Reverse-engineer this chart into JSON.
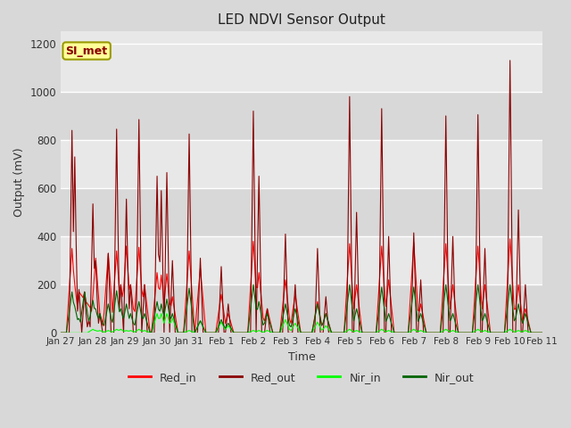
{
  "title": "LED NDVI Sensor Output",
  "xlabel": "Time",
  "ylabel": "Output (mV)",
  "ylim": [
    0,
    1250
  ],
  "xlim": [
    0,
    345
  ],
  "fig_bg_color": "#d8d8d8",
  "plot_bg_color": "#e8e8e8",
  "legend_labels": [
    "Red_in",
    "Red_out",
    "Nir_in",
    "Nir_out"
  ],
  "legend_colors": [
    "#ff0000",
    "#8b0000",
    "#00ff00",
    "#006400"
  ],
  "annotation_text": "SI_met",
  "annotation_color": "#8b0000",
  "annotation_bg": "#ffff99",
  "annotation_border": "#999900",
  "tick_labels": [
    "Jan 27",
    "Jan 28",
    "Jan 29",
    "Jan 30",
    "Jan 31",
    "Feb 1",
    "Feb 2",
    "Feb 3",
    "Feb 4",
    "Feb 5",
    "Feb 6",
    "Feb 7",
    "Feb 8",
    "Feb 9",
    "Feb 10",
    "Feb 11"
  ],
  "tick_positions": [
    0,
    23,
    46,
    69,
    92,
    115,
    138,
    161,
    184,
    207,
    230,
    253,
    276,
    299,
    322,
    345
  ],
  "grid_color": "#c8c8c8",
  "yticks": [
    0,
    200,
    400,
    600,
    800,
    1000,
    1200
  ],
  "spikes": [
    {
      "t": 8,
      "ri": 350,
      "ro": 840,
      "ni": 0,
      "no": 170
    },
    {
      "t": 10,
      "ri": 200,
      "ro": 730,
      "ni": 0,
      "no": 110
    },
    {
      "t": 13,
      "ri": 80,
      "ro": 180,
      "ni": 0,
      "no": 60
    },
    {
      "t": 17,
      "ri": 170,
      "ro": 170,
      "ni": 0,
      "no": 170
    },
    {
      "t": 20,
      "ri": 50,
      "ro": 50,
      "ni": 0,
      "no": 50
    },
    {
      "t": 23,
      "ri": 120,
      "ro": 535,
      "ni": 15,
      "no": 135
    },
    {
      "t": 25,
      "ri": 310,
      "ro": 300,
      "ni": 10,
      "no": 100
    },
    {
      "t": 28,
      "ri": 60,
      "ro": 80,
      "ni": 10,
      "no": 80
    },
    {
      "t": 34,
      "ri": 330,
      "ro": 330,
      "ni": 10,
      "no": 120
    },
    {
      "t": 40,
      "ri": 340,
      "ro": 845,
      "ni": 15,
      "no": 175
    },
    {
      "t": 43,
      "ri": 200,
      "ro": 200,
      "ni": 15,
      "no": 100
    },
    {
      "t": 47,
      "ri": 360,
      "ro": 555,
      "ni": 10,
      "no": 120
    },
    {
      "t": 50,
      "ri": 200,
      "ro": 200,
      "ni": 10,
      "no": 80
    },
    {
      "t": 56,
      "ri": 355,
      "ro": 885,
      "ni": 15,
      "no": 130
    },
    {
      "t": 60,
      "ri": 200,
      "ro": 200,
      "ni": 10,
      "no": 80
    },
    {
      "t": 69,
      "ri": 250,
      "ro": 650,
      "ni": 80,
      "no": 130
    },
    {
      "t": 72,
      "ri": 240,
      "ro": 590,
      "ni": 80,
      "no": 120
    },
    {
      "t": 76,
      "ri": 245,
      "ro": 665,
      "ni": 80,
      "no": 140
    },
    {
      "t": 80,
      "ri": 150,
      "ro": 300,
      "ni": 60,
      "no": 80
    },
    {
      "t": 92,
      "ri": 340,
      "ro": 825,
      "ni": 10,
      "no": 185
    },
    {
      "t": 100,
      "ri": 270,
      "ro": 310,
      "ni": 50,
      "no": 50
    },
    {
      "t": 115,
      "ri": 160,
      "ro": 275,
      "ni": 45,
      "no": 55
    },
    {
      "t": 120,
      "ri": 80,
      "ro": 120,
      "ni": 30,
      "no": 40
    },
    {
      "t": 138,
      "ri": 380,
      "ro": 920,
      "ni": 10,
      "no": 200
    },
    {
      "t": 142,
      "ri": 250,
      "ro": 650,
      "ni": 10,
      "no": 130
    },
    {
      "t": 148,
      "ri": 100,
      "ro": 100,
      "ni": 10,
      "no": 80
    },
    {
      "t": 161,
      "ri": 220,
      "ro": 410,
      "ni": 55,
      "no": 120
    },
    {
      "t": 168,
      "ri": 160,
      "ro": 200,
      "ni": 40,
      "no": 100
    },
    {
      "t": 184,
      "ri": 130,
      "ro": 350,
      "ni": 45,
      "no": 120
    },
    {
      "t": 190,
      "ri": 80,
      "ro": 150,
      "ni": 30,
      "no": 80
    },
    {
      "t": 207,
      "ri": 370,
      "ro": 980,
      "ni": 15,
      "no": 200
    },
    {
      "t": 212,
      "ri": 200,
      "ro": 500,
      "ni": 10,
      "no": 100
    },
    {
      "t": 230,
      "ri": 360,
      "ro": 930,
      "ni": 15,
      "no": 190
    },
    {
      "t": 235,
      "ri": 220,
      "ro": 400,
      "ni": 10,
      "no": 80
    },
    {
      "t": 253,
      "ri": 375,
      "ro": 415,
      "ni": 15,
      "no": 190
    },
    {
      "t": 258,
      "ri": 120,
      "ro": 220,
      "ni": 10,
      "no": 80
    },
    {
      "t": 276,
      "ri": 370,
      "ro": 900,
      "ni": 15,
      "no": 200
    },
    {
      "t": 281,
      "ri": 200,
      "ro": 400,
      "ni": 10,
      "no": 80
    },
    {
      "t": 299,
      "ri": 360,
      "ro": 905,
      "ni": 15,
      "no": 200
    },
    {
      "t": 304,
      "ri": 200,
      "ro": 350,
      "ni": 10,
      "no": 80
    },
    {
      "t": 322,
      "ri": 390,
      "ro": 1130,
      "ni": 15,
      "no": 200
    },
    {
      "t": 328,
      "ri": 200,
      "ro": 510,
      "ni": 10,
      "no": 120
    },
    {
      "t": 333,
      "ri": 100,
      "ro": 200,
      "ni": 10,
      "no": 80
    }
  ]
}
